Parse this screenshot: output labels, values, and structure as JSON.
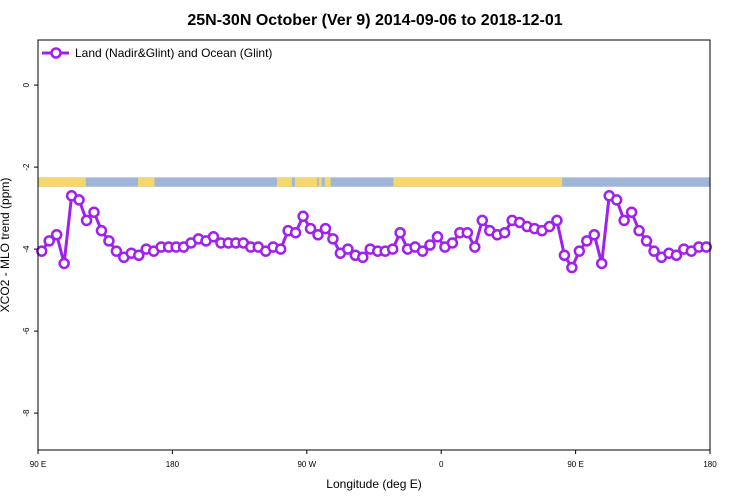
{
  "chart_data": {
    "type": "line",
    "title": "25N-30N October (Ver 9)   2014-09-06 to 2018-12-01",
    "xlabel": "Longitude (deg E)",
    "ylabel": "XCO2 - MLO trend (ppm)",
    "x_ticks": [
      {
        "value": 90,
        "label": "90 E"
      },
      {
        "value": 180,
        "label": "180"
      },
      {
        "value": 270,
        "label": "90 W"
      },
      {
        "value": 360,
        "label": "0"
      },
      {
        "value": 450,
        "label": "90 E"
      },
      {
        "value": 540,
        "label": "180"
      }
    ],
    "y_ticks": [
      0,
      -2,
      -4,
      -6,
      -8
    ],
    "xlim": [
      90,
      540
    ],
    "ylim": [
      -8.9,
      1.1
    ],
    "legend_position": "top-left",
    "colors": {
      "series": "#a020f0",
      "land": "#f5d76e",
      "ocean": "#9fb6d8"
    },
    "land_ocean_band": {
      "y_range": [
        -2.25,
        -2.48
      ],
      "land_segments": [
        [
          90,
          122
        ],
        [
          157,
          168
        ],
        [
          250,
          260
        ],
        [
          262,
          277
        ],
        [
          278,
          280
        ],
        [
          282,
          286
        ],
        [
          328,
          441
        ]
      ]
    },
    "series": [
      {
        "name": "Land (Nadir&Glint) and Ocean (Glint)",
        "x": [
          92.5,
          97.5,
          102.5,
          107.5,
          112.5,
          117.5,
          122.5,
          127.5,
          132.5,
          137.5,
          142.5,
          147.5,
          152.5,
          157.5,
          162.5,
          167.5,
          172.5,
          177.5,
          182.5,
          187.5,
          192.5,
          197.5,
          202.5,
          207.5,
          212.5,
          217.5,
          222.5,
          227.5,
          232.5,
          237.5,
          242.5,
          247.5,
          252.5,
          257.5,
          262.5,
          267.5,
          272.5,
          277.5,
          282.5,
          287.5,
          292.5,
          297.5,
          302.5,
          307.5,
          312.5,
          317.5,
          322.5,
          327.5,
          332.5,
          337.5,
          342.5,
          347.5,
          352.5,
          357.5,
          362.5,
          367.5,
          372.5,
          377.5,
          382.5,
          387.5,
          392.5,
          397.5,
          402.5,
          407.5,
          412.5,
          417.5,
          422.5,
          427.5,
          432.5,
          437.5,
          442.5,
          447.5,
          452.5,
          457.5,
          462.5,
          467.5,
          472.5,
          477.5,
          482.5,
          487.5,
          492.5,
          497.5,
          502.5,
          507.5,
          512.5,
          517.5,
          522.5,
          527.5,
          532.5,
          537.5
        ],
        "values": [
          -4.05,
          -3.8,
          -3.65,
          -4.35,
          -2.7,
          -2.8,
          -3.3,
          -3.1,
          -3.55,
          -3.8,
          -4.05,
          -4.2,
          -4.1,
          -4.15,
          -4.0,
          -4.05,
          -3.95,
          -3.95,
          -3.95,
          -3.95,
          -3.85,
          -3.75,
          -3.8,
          -3.7,
          -3.85,
          -3.85,
          -3.85,
          -3.85,
          -3.95,
          -3.95,
          -4.05,
          -3.95,
          -4.0,
          -3.55,
          -3.6,
          -3.2,
          -3.5,
          -3.65,
          -3.5,
          -3.75,
          -4.1,
          -4.0,
          -4.15,
          -4.2,
          -4.0,
          -4.05,
          -4.05,
          -4.0,
          -3.6,
          -4.0,
          -3.95,
          -4.05,
          -3.9,
          -3.7,
          -3.95,
          -3.85,
          -3.6,
          -3.6,
          -3.95,
          -3.3,
          -3.55,
          -3.65,
          -3.6,
          -3.3,
          -3.35,
          -3.45,
          -3.5,
          -3.55,
          -3.45,
          -3.3,
          -4.15,
          -4.45,
          -4.05,
          -3.8,
          -3.65,
          -4.35,
          -2.7,
          -2.8,
          -3.3,
          -3.1,
          -3.55,
          -3.8,
          -4.05,
          -4.2,
          -4.1,
          -4.15,
          -4.0,
          -4.05,
          -3.95,
          -3.95
        ]
      }
    ]
  }
}
